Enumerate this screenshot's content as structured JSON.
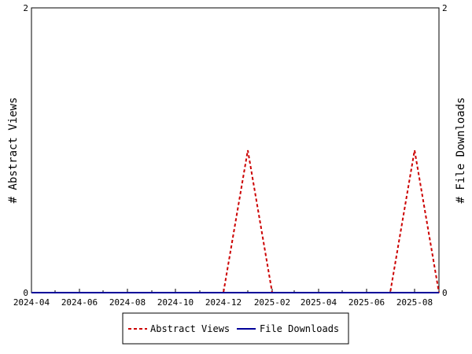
{
  "chart_data": {
    "type": "line",
    "title": "",
    "y_left_label": "# Abstract Views",
    "y_right_label": "# File Downloads",
    "x_tick_labels": [
      "2024-04",
      "2024-06",
      "2024-08",
      "2024-10",
      "2024-12",
      "2025-02",
      "2025-04",
      "2025-06",
      "2025-08"
    ],
    "x_tick_dates": [
      "2024-04-01",
      "2024-06-01",
      "2024-08-01",
      "2024-10-01",
      "2024-12-01",
      "2025-02-01",
      "2025-04-01",
      "2025-06-01",
      "2025-08-01"
    ],
    "xlim": [
      "2024-04-01",
      "2025-09-01"
    ],
    "y_left_ticks": [
      "0",
      "2"
    ],
    "y_right_ticks": [
      "0",
      "2"
    ],
    "ylim_left": [
      0,
      2
    ],
    "ylim_right": [
      0,
      2
    ],
    "grid": false,
    "legend_position": "bottom",
    "series": [
      {
        "name": "Abstract Views",
        "axis": "left",
        "style": "dashed",
        "color": "#cc0000",
        "points": [
          {
            "x": "2024-04-01",
            "y": 0
          },
          {
            "x": "2024-12-01",
            "y": 0
          },
          {
            "x": "2025-01-01",
            "y": 1
          },
          {
            "x": "2025-02-01",
            "y": 0
          },
          {
            "x": "2025-07-01",
            "y": 0
          },
          {
            "x": "2025-08-01",
            "y": 1
          },
          {
            "x": "2025-09-01",
            "y": 0
          }
        ]
      },
      {
        "name": "File Downloads",
        "axis": "right",
        "style": "solid",
        "color": "#000099",
        "points": [
          {
            "x": "2024-04-01",
            "y": 0
          },
          {
            "x": "2025-09-01",
            "y": 0
          }
        ]
      }
    ]
  }
}
